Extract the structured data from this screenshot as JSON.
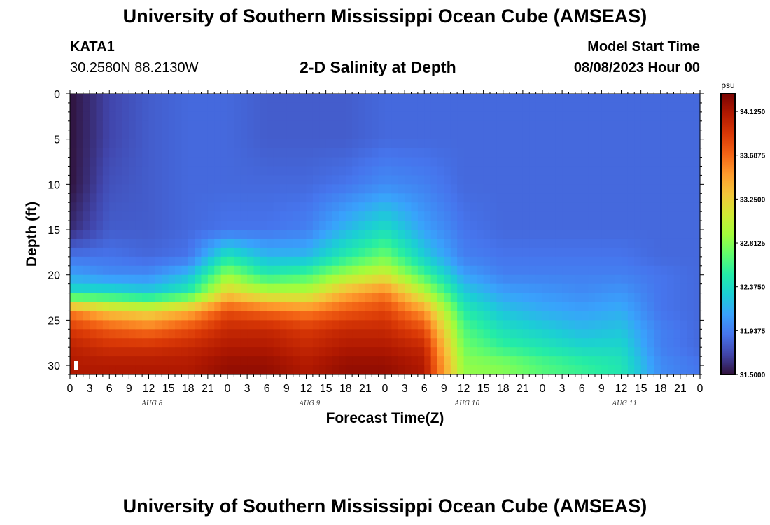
{
  "header": {
    "title": "University of Southern Mississippi Ocean Cube (AMSEAS)",
    "station": "KATA1",
    "coordinates": "30.2580N  88.2130W",
    "subtitle": "2-D Salinity at Depth",
    "model_start_label": "Model Start Time",
    "model_start_value": "08/08/2023 Hour 00"
  },
  "footer": {
    "title": "University of Southern Mississippi Ocean Cube (AMSEAS)"
  },
  "chart_data": {
    "type": "heatmap",
    "title": "2-D Salinity at Depth",
    "xlabel": "Forecast Time(Z)",
    "ylabel": "Depth (ft)",
    "x_range_hours": [
      0,
      96
    ],
    "ylim": [
      0,
      31
    ],
    "y_inverted": true,
    "x_tick_labels": [
      "0",
      "3",
      "6",
      "9",
      "12",
      "15",
      "18",
      "21",
      "0",
      "3",
      "6",
      "9",
      "12",
      "15",
      "18",
      "21",
      "0",
      "3",
      "6",
      "9",
      "12",
      "15",
      "18",
      "21",
      "0",
      "3",
      "6",
      "9",
      "12",
      "15",
      "18",
      "21",
      "0"
    ],
    "y_tick_labels": [
      "0",
      "5",
      "10",
      "15",
      "20",
      "25",
      "30"
    ],
    "day_labels": [
      {
        "text": "AUG 8",
        "hour": 12
      },
      {
        "text": "AUG 9",
        "hour": 36
      },
      {
        "text": "AUG 10",
        "hour": 60
      },
      {
        "text": "AUG 11",
        "hour": 84
      }
    ],
    "colorbar": {
      "unit": "psu",
      "min": 31.5,
      "max": 34.3,
      "tick_labels": [
        "34.1250",
        "33.6875",
        "33.2500",
        "32.8125",
        "32.3750",
        "31.9375",
        "31.5000"
      ]
    },
    "salinity_profiles_psu": {
      "depths_ft": [
        0,
        5,
        10,
        15,
        18,
        20,
        22,
        24,
        26,
        28,
        30,
        31
      ],
      "hours": [
        0,
        6,
        12,
        18,
        24,
        30,
        36,
        42,
        48,
        54,
        60,
        66,
        72,
        78,
        84,
        90,
        96
      ],
      "values": [
        [
          31.5,
          31.5,
          31.5,
          31.6,
          31.9,
          32.1,
          32.4,
          33.6,
          33.9,
          34.05,
          34.1,
          34.1
        ],
        [
          31.7,
          31.7,
          31.75,
          31.8,
          31.9,
          32.0,
          32.4,
          33.3,
          33.75,
          33.95,
          34.1,
          34.1
        ],
        [
          31.8,
          31.8,
          31.8,
          31.8,
          31.85,
          32.0,
          32.3,
          33.2,
          33.65,
          33.95,
          34.1,
          34.1
        ],
        [
          31.85,
          31.85,
          31.85,
          31.85,
          31.9,
          32.2,
          32.5,
          33.4,
          33.8,
          34.0,
          34.1,
          34.1
        ],
        [
          31.85,
          31.85,
          31.85,
          31.9,
          32.45,
          32.85,
          33.25,
          33.8,
          34.0,
          34.1,
          34.2,
          34.2
        ],
        [
          31.8,
          31.8,
          31.85,
          31.9,
          32.2,
          32.5,
          33.0,
          33.7,
          34.0,
          34.1,
          34.2,
          34.2
        ],
        [
          31.8,
          31.8,
          31.85,
          31.95,
          32.2,
          32.6,
          33.0,
          33.6,
          33.9,
          34.0,
          34.1,
          34.1
        ],
        [
          31.8,
          31.8,
          31.9,
          32.2,
          32.5,
          32.9,
          33.4,
          33.75,
          34.0,
          34.1,
          34.2,
          34.2
        ],
        [
          31.85,
          31.85,
          32.0,
          32.4,
          32.75,
          33.1,
          33.6,
          33.85,
          34.0,
          34.1,
          34.2,
          34.2
        ],
        [
          31.85,
          31.85,
          31.95,
          32.1,
          32.3,
          32.6,
          33.0,
          33.5,
          33.8,
          34.0,
          34.1,
          34.1
        ],
        [
          31.85,
          31.85,
          31.85,
          31.9,
          31.95,
          32.1,
          32.3,
          32.5,
          32.65,
          32.75,
          32.85,
          32.85
        ],
        [
          31.85,
          31.85,
          31.85,
          31.85,
          31.9,
          31.95,
          32.1,
          32.25,
          32.4,
          32.55,
          32.8,
          32.8
        ],
        [
          31.85,
          31.85,
          31.85,
          31.85,
          31.9,
          31.95,
          32.05,
          32.15,
          32.3,
          32.45,
          32.65,
          32.65
        ],
        [
          31.85,
          31.85,
          31.85,
          31.85,
          31.9,
          31.95,
          32.0,
          32.1,
          32.2,
          32.35,
          32.55,
          32.55
        ],
        [
          31.85,
          31.85,
          31.85,
          31.85,
          31.9,
          31.95,
          32.05,
          32.15,
          32.25,
          32.35,
          32.45,
          32.45
        ],
        [
          31.85,
          31.85,
          31.85,
          31.85,
          31.85,
          31.9,
          31.9,
          31.9,
          31.95,
          31.95,
          32.0,
          32.0
        ],
        [
          31.85,
          31.85,
          31.85,
          31.85,
          31.85,
          31.85,
          31.85,
          31.85,
          31.85,
          31.85,
          31.9,
          31.9
        ]
      ]
    }
  }
}
